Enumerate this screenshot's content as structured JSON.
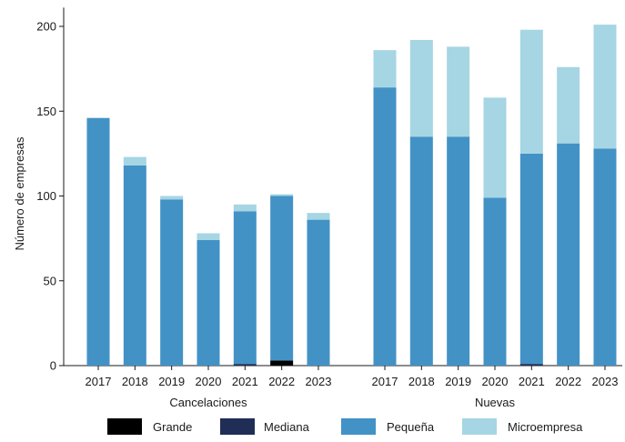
{
  "chart_data": {
    "type": "bar",
    "stacked": true,
    "ylabel": "Número de empresas",
    "ylim": [
      0,
      210
    ],
    "yticks": [
      0,
      50,
      100,
      150,
      200
    ],
    "grid": false,
    "legend_position": "bottom",
    "series_order": [
      "Grande",
      "Mediana",
      "Pequeña",
      "Microempresa"
    ],
    "colors": {
      "Grande": "#000000",
      "Mediana": "#1f2d57",
      "Pequeña": "#4292c6",
      "Microempresa": "#a6d5e3"
    },
    "groups": [
      {
        "name": "Cancelaciones",
        "categories": [
          "2017",
          "2018",
          "2019",
          "2020",
          "2021",
          "2022",
          "2023"
        ],
        "series": [
          {
            "name": "Grande",
            "values": [
              0,
              0,
              0,
              0,
              0,
              3,
              0
            ]
          },
          {
            "name": "Mediana",
            "values": [
              0,
              0,
              0,
              0,
              1,
              0,
              0
            ]
          },
          {
            "name": "Pequeña",
            "values": [
              146,
              118,
              98,
              74,
              90,
              97,
              86
            ]
          },
          {
            "name": "Microempresa",
            "values": [
              0,
              5,
              2,
              4,
              4,
              1,
              4
            ]
          }
        ]
      },
      {
        "name": "Nuevas",
        "categories": [
          "2017",
          "2018",
          "2019",
          "2020",
          "2021",
          "2022",
          "2023"
        ],
        "series": [
          {
            "name": "Grande",
            "values": [
              0,
              0,
              0,
              0,
              0,
              0,
              0
            ]
          },
          {
            "name": "Mediana",
            "values": [
              0,
              0,
              0,
              0,
              1,
              0,
              0
            ]
          },
          {
            "name": "Pequeña",
            "values": [
              164,
              135,
              135,
              99,
              124,
              131,
              128
            ]
          },
          {
            "name": "Microempresa",
            "values": [
              22,
              57,
              53,
              59,
              73,
              45,
              73
            ]
          }
        ]
      }
    ]
  }
}
